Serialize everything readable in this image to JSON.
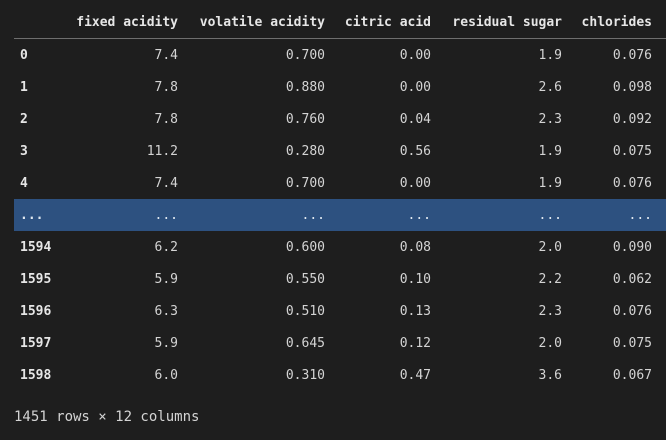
{
  "dataframe": {
    "columns": [
      "",
      "fixed acidity",
      "volatile acidity",
      "citric acid",
      "residual sugar",
      "chlorides"
    ],
    "rows": [
      {
        "index": "0",
        "cells": [
          "7.4",
          "0.700",
          "0.00",
          "1.9",
          "0.076"
        ]
      },
      {
        "index": "1",
        "cells": [
          "7.8",
          "0.880",
          "0.00",
          "2.6",
          "0.098"
        ]
      },
      {
        "index": "2",
        "cells": [
          "7.8",
          "0.760",
          "0.04",
          "2.3",
          "0.092"
        ]
      },
      {
        "index": "3",
        "cells": [
          "11.2",
          "0.280",
          "0.56",
          "1.9",
          "0.075"
        ]
      },
      {
        "index": "4",
        "cells": [
          "7.4",
          "0.700",
          "0.00",
          "1.9",
          "0.076"
        ]
      },
      {
        "index": "...",
        "cells": [
          "...",
          "...",
          "...",
          "...",
          "..."
        ]
      },
      {
        "index": "1594",
        "cells": [
          "6.2",
          "0.600",
          "0.08",
          "2.0",
          "0.090"
        ]
      },
      {
        "index": "1595",
        "cells": [
          "5.9",
          "0.550",
          "0.10",
          "2.2",
          "0.062"
        ]
      },
      {
        "index": "1596",
        "cells": [
          "6.3",
          "0.510",
          "0.13",
          "2.3",
          "0.076"
        ]
      },
      {
        "index": "1597",
        "cells": [
          "5.9",
          "0.645",
          "0.12",
          "2.0",
          "0.075"
        ]
      },
      {
        "index": "1598",
        "cells": [
          "6.0",
          "0.310",
          "0.47",
          "3.6",
          "0.067"
        ]
      }
    ],
    "highlighted_row_index": "...",
    "shape_text": "1451 rows × 12 columns"
  },
  "colors": {
    "background": "#1e1e1e",
    "text": "#d4d4d4",
    "header_rule": "#6e6e6e",
    "selected_row": "#2d5180"
  }
}
